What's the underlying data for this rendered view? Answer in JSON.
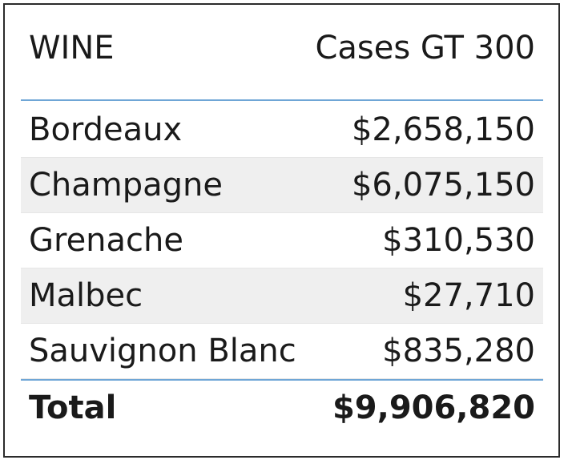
{
  "table": {
    "columns": {
      "name": "WINE",
      "value": "Cases GT 300"
    },
    "rows": [
      {
        "name": "Bordeaux",
        "value": "$2,658,150"
      },
      {
        "name": "Champagne",
        "value": "$6,075,150"
      },
      {
        "name": "Grenache",
        "value": "$310,530"
      },
      {
        "name": "Malbec",
        "value": "$27,710"
      },
      {
        "name": "Sauvignon Blanc",
        "value": "$835,280"
      }
    ],
    "total": {
      "label": "Total",
      "value": "$9,906,820"
    }
  },
  "colors": {
    "divider": "#6fa6d6",
    "alt_row": "#efefef",
    "border": "#2b2b2b"
  }
}
